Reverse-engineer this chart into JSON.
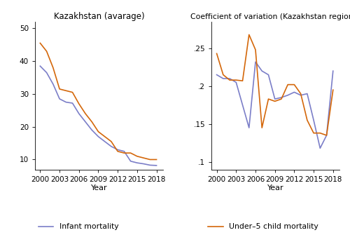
{
  "title_left": "Kazakhstan (avarage)",
  "title_right": "Coefficient of variation (Kazakhstan regions)",
  "xlabel": "Year",
  "years_left": [
    2000,
    2001,
    2002,
    2003,
    2004,
    2005,
    2006,
    2007,
    2008,
    2009,
    2010,
    2011,
    2012,
    2013,
    2014,
    2015,
    2016,
    2017,
    2018
  ],
  "infant_mortality": [
    38.5,
    36.5,
    33.0,
    28.5,
    27.5,
    27.2,
    24.0,
    21.5,
    19.0,
    17.0,
    15.5,
    14.0,
    13.0,
    12.5,
    9.5,
    9.0,
    8.7,
    8.3,
    8.2
  ],
  "under5_mortality": [
    45.5,
    43.0,
    38.0,
    31.5,
    31.0,
    30.5,
    27.0,
    24.0,
    21.5,
    18.5,
    17.0,
    15.5,
    12.5,
    12.0,
    12.0,
    11.0,
    10.5,
    10.0,
    10.0
  ],
  "years_right": [
    2000,
    2001,
    2002,
    2003,
    2004,
    2005,
    2006,
    2007,
    2008,
    2009,
    2010,
    2011,
    2012,
    2013,
    2014,
    2015,
    2016,
    2017,
    2018
  ],
  "cv_infant": [
    0.215,
    0.21,
    0.21,
    0.205,
    0.175,
    0.145,
    0.232,
    0.22,
    0.215,
    0.183,
    0.185,
    0.188,
    0.192,
    0.188,
    0.19,
    0.155,
    0.118,
    0.135,
    0.22
  ],
  "cv_under5": [
    0.243,
    0.215,
    0.208,
    0.208,
    0.207,
    0.268,
    0.248,
    0.145,
    0.183,
    0.18,
    0.183,
    0.202,
    0.202,
    0.19,
    0.155,
    0.138,
    0.138,
    0.135,
    0.195
  ],
  "color_infant": "#7b7ec8",
  "color_under5": "#d4670a",
  "ylim_left": [
    7,
    52
  ],
  "yticks_left": [
    10,
    20,
    30,
    40,
    50
  ],
  "ylim_right": [
    0.09,
    0.285
  ],
  "yticks_right": [
    0.1,
    0.15,
    0.2,
    0.25
  ],
  "xticks": [
    2000,
    2003,
    2006,
    2009,
    2012,
    2015,
    2018
  ]
}
